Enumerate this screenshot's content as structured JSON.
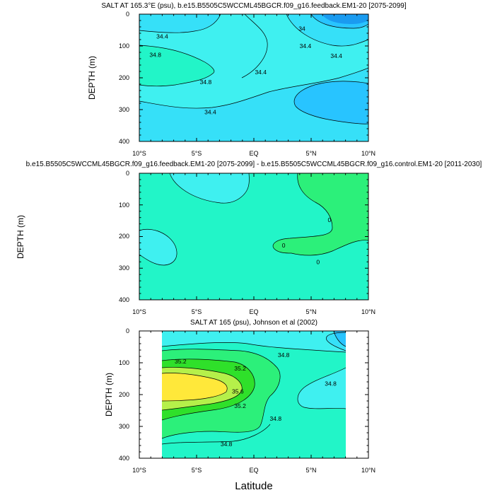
{
  "figure": {
    "x_axis_label": "Latitude",
    "x_tick_labels": [
      "10°S",
      "5°S",
      "EQ",
      "5°N",
      "10°N"
    ],
    "y_tick_labels": [
      "0",
      "100",
      "200",
      "300",
      "400"
    ]
  },
  "colors": {
    "cyan_light": "#3ff0f0",
    "cyan_mid": "#36e0f8",
    "cyan_deep": "#28c4ff",
    "blue_dark": "#1a9bf0",
    "aqua_green": "#22f5c8",
    "green_light": "#2cf07a",
    "green_bright": "#2fe02a",
    "yellow_green": "#b5f04a",
    "yellow": "#ffe83a",
    "frame": "#000000"
  },
  "chart_data": [
    {
      "type": "contour",
      "title": "SALT AT 165.3°E (psu), b.e15.B5505C5WCCML45BGCR.f09_g16.feedback.EM1-20 [2075-2099]",
      "xlabel": "",
      "ylabel": "DEPTH (m)",
      "xlim": [
        -10,
        10
      ],
      "ylim": [
        400,
        0
      ],
      "x_ticks": [
        -10,
        -5,
        0,
        5,
        10
      ],
      "y_ticks": [
        0,
        100,
        200,
        300,
        400
      ],
      "contour_labels": [
        {
          "text": "34.4",
          "lat": -8.0,
          "depth": 70
        },
        {
          "text": "34.8",
          "lat": -8.6,
          "depth": 128
        },
        {
          "text": "34.8",
          "lat": -4.2,
          "depth": 213
        },
        {
          "text": "34.4",
          "lat": -3.8,
          "depth": 308
        },
        {
          "text": "34.4",
          "lat": 0.6,
          "depth": 182
        },
        {
          "text": "34",
          "lat": 4.2,
          "depth": 46
        },
        {
          "text": "34.4",
          "lat": 4.5,
          "depth": 100
        },
        {
          "text": "34.4",
          "lat": 7.2,
          "depth": 131
        }
      ]
    },
    {
      "type": "contour",
      "title": "b.e15.B5505C5WCCML45BGCR.f09_g16.feedback.EM1-20 [2075-2099] - b.e15.B5505C5WCCML45BGCR.f09_g16.control.EM1-20 [2011-2030]",
      "xlabel": "",
      "ylabel": "DEPTH (m)",
      "xlim": [
        -10,
        10
      ],
      "ylim": [
        400,
        0
      ],
      "x_ticks": [
        -10,
        -5,
        0,
        5,
        10
      ],
      "y_ticks": [
        0,
        100,
        200,
        300,
        400
      ],
      "contour_labels": [
        {
          "text": "0",
          "lat": 6.6,
          "depth": 148
        },
        {
          "text": "0",
          "lat": 2.6,
          "depth": 228
        },
        {
          "text": "0",
          "lat": 5.6,
          "depth": 280
        }
      ]
    },
    {
      "type": "contour",
      "title": "SALT AT 165 (psu), Johnson et al (2002)",
      "xlabel": "Latitude",
      "ylabel": "DEPTH (m)",
      "xlim": [
        -10,
        10
      ],
      "ylim": [
        400,
        0
      ],
      "x_ticks": [
        -10,
        -5,
        0,
        5,
        10
      ],
      "y_ticks": [
        0,
        100,
        200,
        300,
        400
      ],
      "data_extent_lat": [
        -8,
        8
      ],
      "contour_labels": [
        {
          "text": "35.2",
          "lat": -6.4,
          "depth": 95
        },
        {
          "text": "35.2",
          "lat": -1.2,
          "depth": 118
        },
        {
          "text": "35.6",
          "lat": -1.4,
          "depth": 190
        },
        {
          "text": "35.2",
          "lat": -1.2,
          "depth": 235
        },
        {
          "text": "34.8",
          "lat": 2.6,
          "depth": 75
        },
        {
          "text": "34.8",
          "lat": 6.7,
          "depth": 165
        },
        {
          "text": "34.8",
          "lat": 1.9,
          "depth": 275
        },
        {
          "text": "34.8",
          "lat": -2.4,
          "depth": 355
        }
      ]
    }
  ]
}
